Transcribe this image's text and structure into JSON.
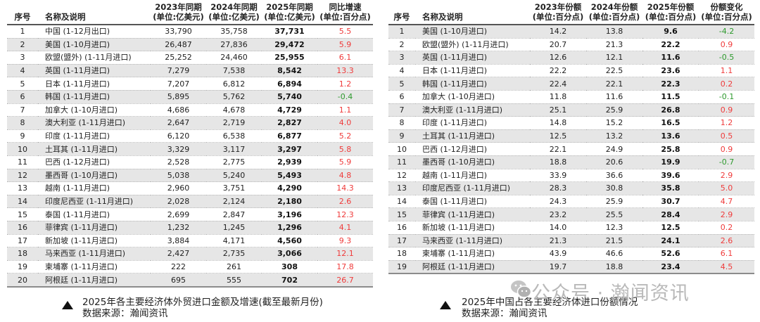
{
  "left_table": {
    "headers": {
      "index": "序号",
      "name": "名称及说明",
      "y2023": [
        "2023年同期",
        "(单位:亿美元)"
      ],
      "y2024": [
        "2024年同期",
        "(单位:亿美元)"
      ],
      "y2025": [
        "2025年同期",
        "(单位:亿美元)"
      ],
      "growth": [
        "同比增速",
        "(单位:百分点)"
      ]
    },
    "rows": [
      {
        "idx": "1",
        "name": "中国 (1-12月出口)",
        "y2023": "33,790",
        "y2024": "35,758",
        "y2025": "37,731",
        "growth": "5.5",
        "dir": "pos"
      },
      {
        "idx": "2",
        "name": "美国 (1-10月进口)",
        "y2023": "26,487",
        "y2024": "27,836",
        "y2025": "29,472",
        "growth": "5.9",
        "dir": "pos"
      },
      {
        "idx": "3",
        "name": "欧盟(盟外) (1-11月进口)",
        "y2023": "25,252",
        "y2024": "24,460",
        "y2025": "25,955",
        "growth": "6.1",
        "dir": "pos"
      },
      {
        "idx": "4",
        "name": "英国 (1-11月进口)",
        "y2023": "7,279",
        "y2024": "7,538",
        "y2025": "8,542",
        "growth": "13.3",
        "dir": "pos"
      },
      {
        "idx": "5",
        "name": "日本 (1-11月进口)",
        "y2023": "7,207",
        "y2024": "6,812",
        "y2025": "6,894",
        "growth": "1.2",
        "dir": "pos"
      },
      {
        "idx": "6",
        "name": "韩国 (1-11月进口)",
        "y2023": "5,895",
        "y2024": "5,762",
        "y2025": "5,740",
        "growth": "-0.4",
        "dir": "neg"
      },
      {
        "idx": "7",
        "name": "加拿大 (1-10月进口)",
        "y2023": "4,686",
        "y2024": "4,678",
        "y2025": "4,729",
        "growth": "1.1",
        "dir": "pos"
      },
      {
        "idx": "8",
        "name": "澳大利亚 (1-11月进口)",
        "y2023": "2,647",
        "y2024": "2,719",
        "y2025": "2,827",
        "growth": "4.0",
        "dir": "pos"
      },
      {
        "idx": "9",
        "name": "印度 (1-11月进口)",
        "y2023": "6,120",
        "y2024": "6,538",
        "y2025": "6,877",
        "growth": "5.2",
        "dir": "pos"
      },
      {
        "idx": "10",
        "name": "土耳其 (1-11月进口)",
        "y2023": "3,329",
        "y2024": "3,117",
        "y2025": "3,297",
        "growth": "5.8",
        "dir": "pos"
      },
      {
        "idx": "11",
        "name": "巴西 (1-12月进口)",
        "y2023": "2,528",
        "y2024": "2,775",
        "y2025": "2,939",
        "growth": "5.9",
        "dir": "pos"
      },
      {
        "idx": "12",
        "name": "墨西哥 (1-10月进口)",
        "y2023": "5,038",
        "y2024": "5,240",
        "y2025": "5,493",
        "growth": "4.8",
        "dir": "pos"
      },
      {
        "idx": "13",
        "name": "越南 (1-11月进口)",
        "y2023": "2,960",
        "y2024": "3,751",
        "y2025": "4,290",
        "growth": "14.3",
        "dir": "pos"
      },
      {
        "idx": "14",
        "name": "印度尼西亚 (1-11月进口)",
        "y2023": "2,028",
        "y2024": "2,124",
        "y2025": "2,180",
        "growth": "2.6",
        "dir": "pos"
      },
      {
        "idx": "15",
        "name": "泰国 (1-11月进口)",
        "y2023": "2,699",
        "y2024": "2,847",
        "y2025": "3,196",
        "growth": "12.3",
        "dir": "pos"
      },
      {
        "idx": "16",
        "name": "菲律宾 (1-11月进口)",
        "y2023": "1,232",
        "y2024": "1,245",
        "y2025": "1,296",
        "growth": "4.1",
        "dir": "pos"
      },
      {
        "idx": "17",
        "name": "新加坡 (1-11月进口)",
        "y2023": "3,884",
        "y2024": "4,171",
        "y2025": "4,560",
        "growth": "9.3",
        "dir": "pos"
      },
      {
        "idx": "18",
        "name": "马来西亚 (1-11月进口)",
        "y2023": "2,427",
        "y2024": "2,735",
        "y2025": "3,066",
        "growth": "12.1",
        "dir": "pos"
      },
      {
        "idx": "19",
        "name": "柬埔寨 (1-11月进口)",
        "y2023": "222",
        "y2024": "261",
        "y2025": "308",
        "growth": "17.8",
        "dir": "pos"
      },
      {
        "idx": "20",
        "name": "阿根廷 (1-11月进口)",
        "y2023": "695",
        "y2024": "555",
        "y2025": "702",
        "growth": "26.7",
        "dir": "pos"
      }
    ],
    "caption": {
      "title": "2025年各主要经济体外贸进口金额及增速(截至最新月份)",
      "source": "数据来源：瀚闻资讯"
    }
  },
  "right_table": {
    "headers": {
      "index": "序号",
      "name": "名称及说明",
      "y2023": [
        "2023年份额",
        "(单位:百分点)"
      ],
      "y2024": [
        "2024年份额",
        "(单位:百分点)"
      ],
      "y2025": [
        "2025年份额",
        "(单位:百分点)"
      ],
      "change": [
        "份额变化",
        "(单位:百分点)"
      ]
    },
    "rows": [
      {
        "idx": "1",
        "name": "美国 (1-10月进口)",
        "y2023": "14.2",
        "y2024": "13.8",
        "y2025": "9.6",
        "change": "-4.2",
        "dir": "neg"
      },
      {
        "idx": "2",
        "name": "欧盟(盟外) (1-11月进口)",
        "y2023": "20.7",
        "y2024": "21.3",
        "y2025": "22.2",
        "change": "0.9",
        "dir": "pos"
      },
      {
        "idx": "3",
        "name": "英国 (1-11月进口)",
        "y2023": "12.6",
        "y2024": "12.1",
        "y2025": "11.6",
        "change": "-0.5",
        "dir": "neg"
      },
      {
        "idx": "4",
        "name": "日本 (1-11月进口)",
        "y2023": "22.2",
        "y2024": "22.5",
        "y2025": "23.6",
        "change": "1.1",
        "dir": "pos"
      },
      {
        "idx": "5",
        "name": "韩国 (1-11月进口)",
        "y2023": "22.4",
        "y2024": "22.1",
        "y2025": "22.3",
        "change": "0.2",
        "dir": "pos"
      },
      {
        "idx": "6",
        "name": "加拿大 (1-10月进口)",
        "y2023": "11.8",
        "y2024": "11.6",
        "y2025": "11.5",
        "change": "-0.1",
        "dir": "neg"
      },
      {
        "idx": "7",
        "name": "澳大利亚 (1-11月进口)",
        "y2023": "25.1",
        "y2024": "25.9",
        "y2025": "26.8",
        "change": "0.9",
        "dir": "pos"
      },
      {
        "idx": "8",
        "name": "印度 (1-11月进口)",
        "y2023": "14.8",
        "y2024": "15.2",
        "y2025": "16.5",
        "change": "1.2",
        "dir": "pos"
      },
      {
        "idx": "9",
        "name": "土耳其 (1-11月进口)",
        "y2023": "12.5",
        "y2024": "13.2",
        "y2025": "13.6",
        "change": "0.5",
        "dir": "pos"
      },
      {
        "idx": "10",
        "name": "巴西 (1-12月进口)",
        "y2023": "22.1",
        "y2024": "24.9",
        "y2025": "25.8",
        "change": "0.9",
        "dir": "pos"
      },
      {
        "idx": "11",
        "name": "墨西哥 (1-10月进口)",
        "y2023": "18.8",
        "y2024": "20.6",
        "y2025": "19.9",
        "change": "-0.7",
        "dir": "neg"
      },
      {
        "idx": "12",
        "name": "越南 (1-11月进口)",
        "y2023": "33.9",
        "y2024": "36.6",
        "y2025": "39.6",
        "change": "2.9",
        "dir": "pos"
      },
      {
        "idx": "13",
        "name": "印度尼西亚 (1-11月进口)",
        "y2023": "28.3",
        "y2024": "30.8",
        "y2025": "35.8",
        "change": "5.0",
        "dir": "pos"
      },
      {
        "idx": "14",
        "name": "泰国 (1-11月进口)",
        "y2023": "24.3",
        "y2024": "25.9",
        "y2025": "30.7",
        "change": "4.7",
        "dir": "pos"
      },
      {
        "idx": "15",
        "name": "菲律宾 (1-11月进口)",
        "y2023": "23.2",
        "y2024": "25.5",
        "y2025": "28.4",
        "change": "2.9",
        "dir": "pos"
      },
      {
        "idx": "16",
        "name": "新加坡 (1-11月进口)",
        "y2023": "14.0",
        "y2024": "12.3",
        "y2025": "12.5",
        "change": "0.2",
        "dir": "pos"
      },
      {
        "idx": "17",
        "name": "马来西亚 (1-11月进口)",
        "y2023": "21.3",
        "y2024": "21.5",
        "y2025": "24.1",
        "change": "2.6",
        "dir": "pos"
      },
      {
        "idx": "18",
        "name": "柬埔寨 (1-11月进口)",
        "y2023": "43.9",
        "y2024": "46.6",
        "y2025": "52.6",
        "change": "6.1",
        "dir": "pos"
      },
      {
        "idx": "19",
        "name": "阿根廷 (1-11月进口)",
        "y2023": "19.7",
        "y2024": "18.8",
        "y2025": "23.4",
        "change": "4.5",
        "dir": "pos"
      }
    ],
    "caption": {
      "title": "2025年中国占各主要经济体进口份额情况",
      "source": "数据来源：瀚闻资讯"
    }
  },
  "watermark": {
    "text": "公众号 · 瀚闻资讯",
    "icon": "wechat-icon"
  },
  "colors": {
    "positive": "#ef3b3b",
    "negative": "#2e9a2e",
    "row_gray": "#e6e6e6"
  }
}
